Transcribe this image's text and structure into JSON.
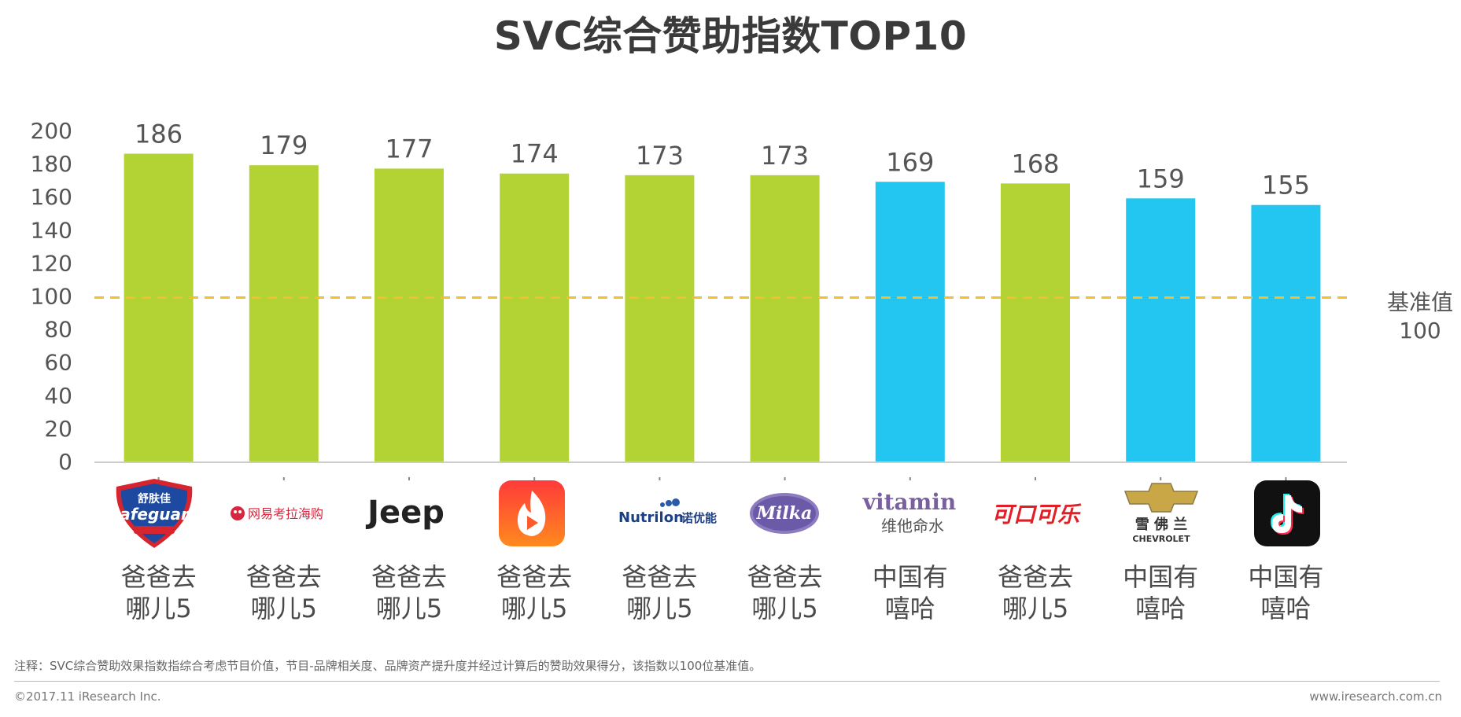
{
  "title": "SVC综合赞助指数TOP10",
  "chart_data": {
    "type": "bar",
    "title": "SVC综合赞助指数TOP10",
    "ylim": [
      0,
      200
    ],
    "yticks": [
      0,
      20,
      40,
      60,
      80,
      100,
      120,
      140,
      160,
      180,
      200
    ],
    "reference_line": {
      "value": 100,
      "label": "基准值",
      "value_label": "100",
      "color": "#F2C02E"
    },
    "colors": {
      "green": "#B3D334",
      "blue": "#22C6F0"
    },
    "bars": [
      {
        "brand": "Safeguard 舒肤佳",
        "program": [
          "爸爸去",
          "哪儿5"
        ],
        "value": 186,
        "color": "green"
      },
      {
        "brand": "网易考拉海购",
        "program": [
          "爸爸去",
          "哪儿5"
        ],
        "value": 179,
        "color": "green"
      },
      {
        "brand": "Jeep",
        "program": [
          "爸爸去",
          "哪儿5"
        ],
        "value": 177,
        "color": "green"
      },
      {
        "brand": "火山小视频",
        "program": [
          "爸爸去",
          "哪儿5"
        ],
        "value": 174,
        "color": "green"
      },
      {
        "brand": "Nutrilon 诺优能",
        "program": [
          "爸爸去",
          "哪儿5"
        ],
        "value": 173,
        "color": "green"
      },
      {
        "brand": "Milka",
        "program": [
          "爸爸去",
          "哪儿5"
        ],
        "value": 173,
        "color": "green"
      },
      {
        "brand": "vitamin 维他命水",
        "program": [
          "中国有",
          "嘻哈"
        ],
        "value": 169,
        "color": "blue"
      },
      {
        "brand": "可口可乐",
        "program": [
          "爸爸去",
          "哪儿5"
        ],
        "value": 168,
        "color": "green"
      },
      {
        "brand": "雪佛兰 CHEVROLET",
        "program": [
          "中国有",
          "嘻哈"
        ],
        "value": 159,
        "color": "blue"
      },
      {
        "brand": "抖音",
        "program": [
          "中国有",
          "嘻哈"
        ],
        "value": 155,
        "color": "blue"
      }
    ]
  },
  "logos": {
    "safeguard_cn": "舒肤佳",
    "safeguard_en": "Safeguard",
    "kaola": "网易考拉海购",
    "jeep": "Jeep",
    "nutrilon": "Nutrilon",
    "nutrilon_cn": "诺优能",
    "milka": "Milka",
    "vitamin": "vitamin",
    "vitamin_cn": "维他命水",
    "coke": "可口可乐",
    "chevy_cn": "雪 佛 兰",
    "chevy_en": "CHEVROLET"
  },
  "footer": {
    "note": "注释：SVC综合赞助效果指数指综合考虑节目价值，节目-品牌相关度、品牌资产提升度并经过计算后的赞助效果得分，该指数以100位基准值。",
    "copyright": "©2017.11 iResearch Inc.",
    "site": "www.iresearch.com.cn"
  }
}
